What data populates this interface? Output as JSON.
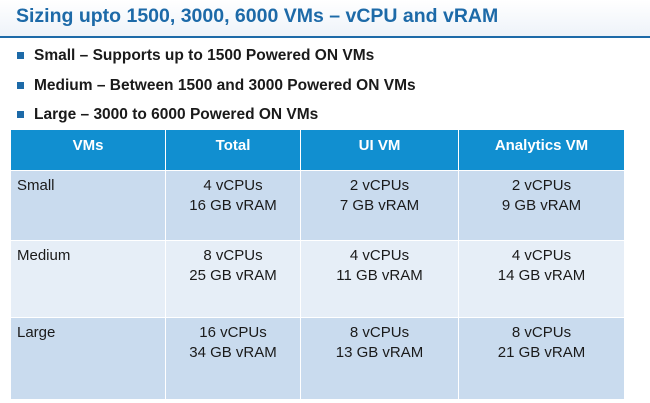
{
  "title": "Sizing upto 1500, 3000, 6000 VMs – vCPU and vRAM",
  "bullets": [
    "Small – Supports up to 1500 Powered ON VMs",
    "Medium  – Between 1500 and 3000 Powered ON VMs",
    "Large – 3000 to 6000 Powered ON VMs"
  ],
  "table": {
    "headers": [
      "VMs",
      "Total",
      "UI VM",
      "Analytics  VM"
    ],
    "rows": [
      {
        "name": "Small",
        "total": [
          "4 vCPUs",
          "16 GB vRAM"
        ],
        "ui_vm": [
          "2 vCPUs",
          "7 GB vRAM"
        ],
        "analytics_vm": [
          "2 vCPUs",
          "9 GB vRAM"
        ]
      },
      {
        "name": "Medium",
        "total": [
          "8 vCPUs",
          "25 GB vRAM"
        ],
        "ui_vm": [
          "4 vCPUs",
          "11 GB vRAM"
        ],
        "analytics_vm": [
          "4 vCPUs",
          "14 GB vRAM"
        ]
      },
      {
        "name": "Large",
        "total": [
          "16 vCPUs",
          "34 GB vRAM"
        ],
        "ui_vm": [
          "8 vCPUs",
          "13 GB vRAM"
        ],
        "analytics_vm": [
          "8 vCPUs",
          "21 GB vRAM"
        ]
      }
    ]
  },
  "colors": {
    "accent": "#1d6aa8",
    "header_fill": "#118fd0",
    "row_dark": "#c9dbee",
    "row_light": "#e6eef7"
  }
}
